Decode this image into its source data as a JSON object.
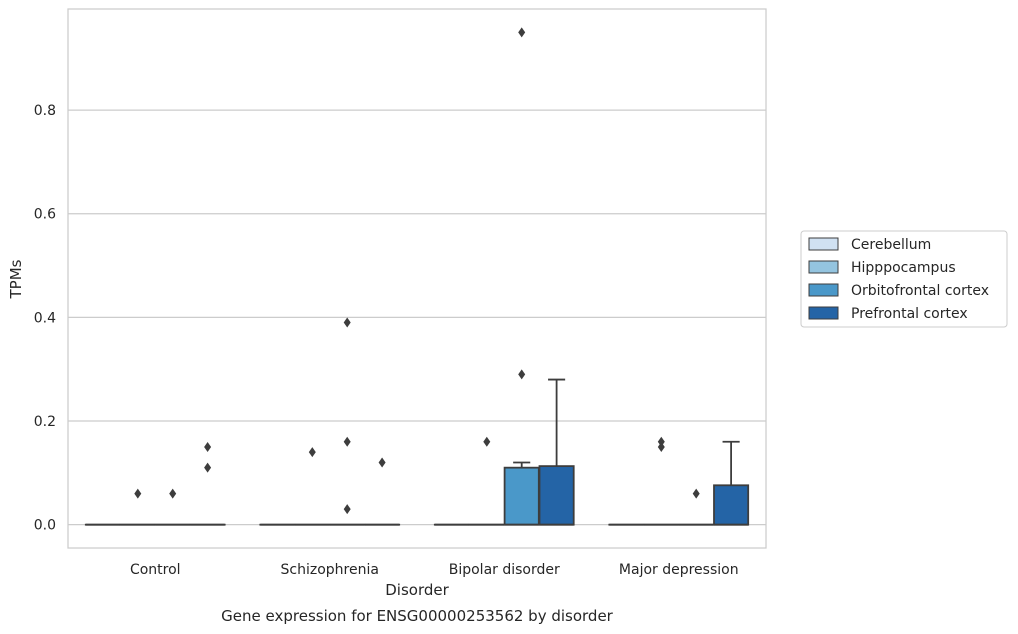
{
  "chart_data": {
    "type": "box",
    "title": "",
    "caption": "Gene expression for ENSG00000253562 by disorder",
    "xlabel": "Disorder",
    "ylabel": "TPMs",
    "categories": [
      "Control",
      "Schizophrenia",
      "Bipolar disorder",
      "Major depression"
    ],
    "ylim": [
      -0.045,
      0.995
    ],
    "yticks": [
      0.0,
      0.2,
      0.4,
      0.6,
      0.8
    ],
    "ytick_labels": [
      "0.0",
      "0.2",
      "0.4",
      "0.6",
      "0.8"
    ],
    "grid": true,
    "legend_position": "right",
    "series": [
      {
        "name": "Cerebellum",
        "color": "#d0e1f2",
        "boxes": [
          {
            "category": "Control",
            "q1": 0,
            "median": 0,
            "q3": 0,
            "whisker_low": 0,
            "whisker_high": 0,
            "outliers": []
          },
          {
            "category": "Schizophrenia",
            "q1": 0,
            "median": 0,
            "q3": 0,
            "whisker_low": 0,
            "whisker_high": 0,
            "outliers": []
          },
          {
            "category": "Bipolar disorder",
            "q1": 0,
            "median": 0,
            "q3": 0,
            "whisker_low": 0,
            "whisker_high": 0,
            "outliers": []
          },
          {
            "category": "Major depression",
            "q1": 0,
            "median": 0,
            "q3": 0,
            "whisker_low": 0,
            "whisker_high": 0,
            "outliers": []
          }
        ]
      },
      {
        "name": "Hipppocampus",
        "color": "#94c4df",
        "boxes": [
          {
            "category": "Control",
            "q1": 0,
            "median": 0,
            "q3": 0,
            "whisker_low": 0,
            "whisker_high": 0,
            "outliers": [
              0.06
            ]
          },
          {
            "category": "Schizophrenia",
            "q1": 0,
            "median": 0,
            "q3": 0,
            "whisker_low": 0,
            "whisker_high": 0,
            "outliers": [
              0.14
            ]
          },
          {
            "category": "Bipolar disorder",
            "q1": 0,
            "median": 0,
            "q3": 0,
            "whisker_low": 0,
            "whisker_high": 0,
            "outliers": [
              0.16
            ]
          },
          {
            "category": "Major depression",
            "q1": 0,
            "median": 0,
            "q3": 0,
            "whisker_low": 0,
            "whisker_high": 0,
            "outliers": [
              0.15,
              0.16
            ]
          }
        ]
      },
      {
        "name": "Orbitofrontal cortex",
        "color": "#4a98c9",
        "boxes": [
          {
            "category": "Control",
            "q1": 0,
            "median": 0,
            "q3": 0,
            "whisker_low": 0,
            "whisker_high": 0,
            "outliers": [
              0.06
            ]
          },
          {
            "category": "Schizophrenia",
            "q1": 0,
            "median": 0,
            "q3": 0,
            "whisker_low": 0,
            "whisker_high": 0,
            "outliers": [
              0.03,
              0.16,
              0.39
            ]
          },
          {
            "category": "Bipolar disorder",
            "q1": 0,
            "median": 0,
            "q3": 0.11,
            "whisker_low": 0,
            "whisker_high": 0.12,
            "outliers": [
              0.29,
              0.95
            ]
          },
          {
            "category": "Major depression",
            "q1": 0,
            "median": 0,
            "q3": 0,
            "whisker_low": 0,
            "whisker_high": 0,
            "outliers": [
              0.06
            ]
          }
        ]
      },
      {
        "name": "Prefrontal cortex",
        "color": "#2464a6",
        "boxes": [
          {
            "category": "Control",
            "q1": 0,
            "median": 0,
            "q3": 0,
            "whisker_low": 0,
            "whisker_high": 0,
            "outliers": [
              0.11,
              0.15
            ]
          },
          {
            "category": "Schizophrenia",
            "q1": 0,
            "median": 0,
            "q3": 0,
            "whisker_low": 0,
            "whisker_high": 0,
            "outliers": [
              0.12
            ]
          },
          {
            "category": "Bipolar disorder",
            "q1": 0,
            "median": 0,
            "q3": 0.113,
            "whisker_low": 0,
            "whisker_high": 0.28,
            "outliers": []
          },
          {
            "category": "Major depression",
            "q1": 0,
            "median": 0,
            "q3": 0.076,
            "whisker_low": 0,
            "whisker_high": 0.16,
            "outliers": []
          }
        ]
      }
    ]
  }
}
